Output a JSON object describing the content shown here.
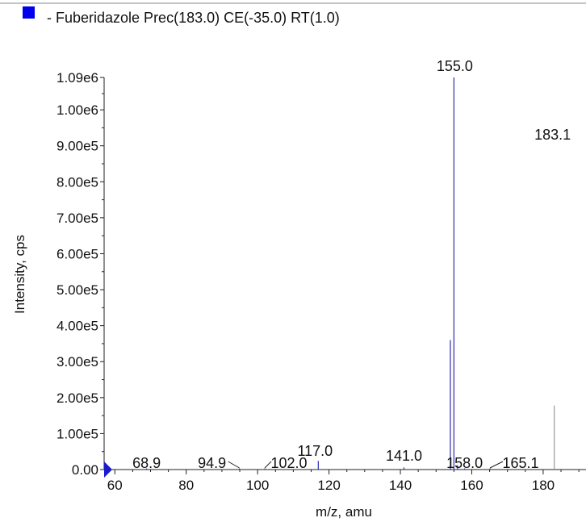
{
  "chart_data": {
    "type": "bar",
    "title": "- Fuberidazole Prec(183.0) CE(-35.0) RT(1.0)",
    "legend": {
      "text": "- Fuberidazole Prec(183.0) CE(-35.0) RT(1.0)",
      "placement": "top-left",
      "marker_color": "#0000ee"
    },
    "xlabel": "m/z, amu",
    "ylabel": "Intensity, cps",
    "xlim": [
      57,
      192
    ],
    "ylim": [
      0,
      1090000
    ],
    "grid": false,
    "series_color": "#2f2fb0",
    "unlabeled_line_color": "#9a9a9a",
    "x_ticks": [
      {
        "value": 60,
        "label": "60"
      },
      {
        "value": 80,
        "label": "80"
      },
      {
        "value": 100,
        "label": "100"
      },
      {
        "value": 120,
        "label": "120"
      },
      {
        "value": 140,
        "label": "140"
      },
      {
        "value": 160,
        "label": "160"
      },
      {
        "value": 180,
        "label": "180"
      }
    ],
    "y_ticks": [
      {
        "value": 0,
        "label": "0.00"
      },
      {
        "value": 100000,
        "label": "1.00e5"
      },
      {
        "value": 200000,
        "label": "2.00e5"
      },
      {
        "value": 300000,
        "label": "3.00e5"
      },
      {
        "value": 400000,
        "label": "4.00e5"
      },
      {
        "value": 500000,
        "label": "5.00e5"
      },
      {
        "value": 600000,
        "label": "6.00e5"
      },
      {
        "value": 700000,
        "label": "7.00e5"
      },
      {
        "value": 800000,
        "label": "8.00e5"
      },
      {
        "value": 900000,
        "label": "9.00e5"
      },
      {
        "value": 1000000,
        "label": "1.00e6"
      },
      {
        "value": 1090000,
        "label": "1.09e6"
      }
    ],
    "peaks": [
      {
        "mz": 68.9,
        "intensity": 3000,
        "label": "68.9"
      },
      {
        "mz": 94.9,
        "intensity": 3000,
        "label": "94.9"
      },
      {
        "mz": 102.0,
        "intensity": 3000,
        "label": "102.0"
      },
      {
        "mz": 117.0,
        "intensity": 24000,
        "label": "117.0"
      },
      {
        "mz": 141.0,
        "intensity": 6000,
        "label": "141.0"
      },
      {
        "mz": 154.0,
        "intensity": 360000,
        "label": ""
      },
      {
        "mz": 155.0,
        "intensity": 1090000,
        "label": "155.0"
      },
      {
        "mz": 156.0,
        "intensity": 12000,
        "label": ""
      },
      {
        "mz": 158.0,
        "intensity": 3000,
        "label": "158.0"
      },
      {
        "mz": 165.1,
        "intensity": 3000,
        "label": "165.1"
      },
      {
        "mz": 183.1,
        "intensity": 178000,
        "label": "183.1"
      }
    ]
  }
}
